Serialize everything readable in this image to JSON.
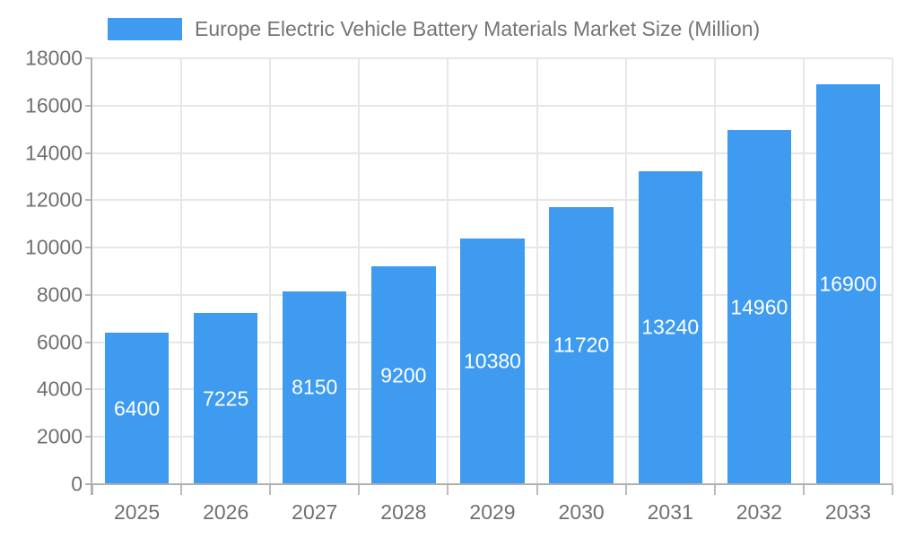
{
  "chart_data": {
    "type": "bar",
    "title": "Europe Electric Vehicle Battery Materials Market Size (Million)",
    "categories": [
      "2025",
      "2026",
      "2027",
      "2028",
      "2029",
      "2030",
      "2031",
      "2032",
      "2033"
    ],
    "values": [
      6400,
      7225,
      8150,
      9200,
      10380,
      11720,
      13240,
      14960,
      16900
    ],
    "xlabel": "",
    "ylabel": "",
    "ylim": [
      0,
      18000
    ],
    "ytick_step": 2000,
    "grid": true,
    "legend_position": "top-left",
    "bar_labels_inside": true,
    "colors": {
      "bar": "#3E9BF0",
      "bar_value_text": "#FFFFFF",
      "grid_line": "#E7E7E7",
      "axis_line": "#B0B0B0",
      "tick_mark": "#BBBBBB",
      "tick_text": "#707070",
      "title_text": "#757575",
      "background": "#FFFFFF"
    }
  }
}
